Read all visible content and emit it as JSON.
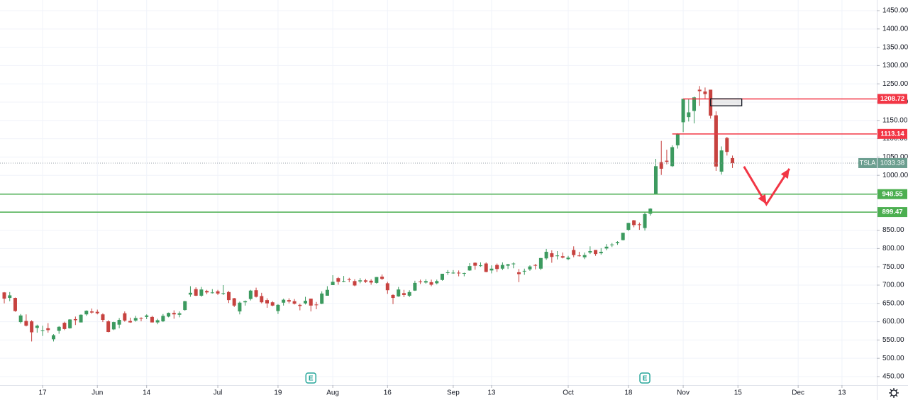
{
  "chart_data": {
    "type": "candlestick",
    "up_color": "#3c9a5f",
    "down_color": "#c7423f",
    "grid": true,
    "xlim": [
      -0.78,
      159.36
    ],
    "ylim": [
      426.7,
      1479.1
    ],
    "yticks": [
      {
        "value": 450,
        "label": "450.00"
      },
      {
        "value": 500,
        "label": "500.00"
      },
      {
        "value": 550,
        "label": "550.00"
      },
      {
        "value": 600,
        "label": "600.00"
      },
      {
        "value": 650,
        "label": "650.00"
      },
      {
        "value": 700,
        "label": "700.00"
      },
      {
        "value": 750,
        "label": "750.00"
      },
      {
        "value": 800,
        "label": "800.00"
      },
      {
        "value": 850,
        "label": "850.00"
      },
      {
        "value": 900,
        "label": "900.00"
      },
      {
        "value": 950,
        "label": "950.00"
      },
      {
        "value": 1000,
        "label": "1000.00"
      },
      {
        "value": 1050,
        "label": "1050.00"
      },
      {
        "value": 1100,
        "label": "1100.00"
      },
      {
        "value": 1150,
        "label": "1150.00"
      },
      {
        "value": 1200,
        "label": "1200.00"
      },
      {
        "value": 1250,
        "label": "1250.00"
      },
      {
        "value": 1300,
        "label": "1300.00"
      },
      {
        "value": 1350,
        "label": "1350.00"
      },
      {
        "value": 1400,
        "label": "1400.00"
      },
      {
        "value": 1450,
        "label": "1450.00"
      }
    ],
    "xticks": [
      {
        "value": 7,
        "label": "17"
      },
      {
        "value": 17,
        "label": "Jun"
      },
      {
        "value": 26,
        "label": "14"
      },
      {
        "value": 39,
        "label": "Jul"
      },
      {
        "value": 50,
        "label": "19"
      },
      {
        "value": 60,
        "label": "Aug"
      },
      {
        "value": 70,
        "label": "16"
      },
      {
        "value": 82,
        "label": "Sep"
      },
      {
        "value": 89,
        "label": "13"
      },
      {
        "value": 103,
        "label": "Oct"
      },
      {
        "value": 114,
        "label": "18"
      },
      {
        "value": 124,
        "label": "Nov"
      },
      {
        "value": 134,
        "label": "15"
      },
      {
        "value": 145,
        "label": "Dec"
      },
      {
        "value": 153,
        "label": "13"
      }
    ],
    "ohlc": [
      [
        680,
        681,
        650,
        663
      ],
      [
        665,
        681,
        656,
        672
      ],
      [
        665,
        666,
        627,
        629
      ],
      [
        599,
        621,
        595,
        617
      ],
      [
        602,
        620,
        587,
        589
      ],
      [
        601,
        604,
        546,
        571
      ],
      [
        583,
        592,
        570,
        589
      ],
      [
        575,
        589,
        561,
        576
      ],
      [
        582,
        596,
        570,
        577
      ],
      [
        552,
        566,
        546,
        563
      ],
      [
        575,
        588,
        567,
        586
      ],
      [
        597,
        600,
        577,
        580
      ],
      [
        582,
        607,
        581,
        606
      ],
      [
        607,
        614,
        591,
        604
      ],
      [
        598,
        620,
        598,
        619
      ],
      [
        620,
        631,
        616,
        630
      ],
      [
        628,
        636,
        622,
        625
      ],
      [
        627,
        633,
        620,
        623
      ],
      [
        620,
        623,
        599,
        605
      ],
      [
        601,
        604,
        571,
        572
      ],
      [
        579,
        600,
        577,
        599
      ],
      [
        592,
        610,
        582,
        605
      ],
      [
        623,
        628,
        600,
        603
      ],
      [
        602,
        611,
        597,
        598
      ],
      [
        603,
        616,
        600,
        610
      ],
      [
        610,
        612,
        601,
        609
      ],
      [
        613,
        620,
        607,
        617
      ],
      [
        613,
        616,
        598,
        598
      ],
      [
        598,
        608,
        593,
        604
      ],
      [
        601,
        621,
        599,
        616
      ],
      [
        614,
        625,
        612,
        624
      ],
      [
        624,
        631,
        608,
        620
      ],
      [
        619,
        628,
        612,
        623
      ],
      [
        632,
        657,
        630,
        656
      ],
      [
        674,
        697,
        668,
        679
      ],
      [
        689,
        694,
        670,
        671
      ],
      [
        671,
        695,
        668,
        688
      ],
      [
        684,
        687,
        675,
        680
      ],
      [
        679,
        689,
        677,
        680
      ],
      [
        683,
        687,
        673,
        677
      ],
      [
        678,
        700,
        673,
        678
      ],
      [
        681,
        684,
        651,
        659
      ],
      [
        664,
        665,
        640,
        644
      ],
      [
        628,
        655,
        620,
        652
      ],
      [
        653,
        658,
        644,
        656
      ],
      [
        662,
        687,
        658,
        685
      ],
      [
        686,
        693,
        666,
        668
      ],
      [
        670,
        679,
        650,
        653
      ],
      [
        659,
        664,
        638,
        650
      ],
      [
        653,
        656,
        642,
        644
      ],
      [
        629,
        648,
        621,
        646
      ],
      [
        652,
        663,
        644,
        660
      ],
      [
        659,
        664,
        650,
        655
      ],
      [
        656,
        662,
        647,
        649
      ],
      [
        646,
        649,
        631,
        643
      ],
      [
        650,
        668,
        647,
        657
      ],
      [
        663,
        663,
        628,
        644
      ],
      [
        647,
        654,
        634,
        646
      ],
      [
        649,
        683,
        648,
        677
      ],
      [
        671,
        697,
        671,
        687
      ],
      [
        700,
        727,
        700,
        709
      ],
      [
        719,
        722,
        701,
        709
      ],
      [
        711,
        725,
        708,
        711
      ],
      [
        716,
        720,
        708,
        714
      ],
      [
        711,
        716,
        697,
        699
      ],
      [
        710,
        719,
        705,
        713
      ],
      [
        713,
        717,
        706,
        709
      ],
      [
        712,
        716,
        701,
        707
      ],
      [
        706,
        722,
        704,
        722
      ],
      [
        723,
        729,
        714,
        717
      ],
      [
        705,
        709,
        676,
        686
      ],
      [
        673,
        675,
        648,
        665
      ],
      [
        669,
        695,
        668,
        688
      ],
      [
        678,
        687,
        667,
        673
      ],
      [
        671,
        686,
        667,
        681
      ],
      [
        685,
        712,
        684,
        706
      ],
      [
        710,
        715,
        703,
        708
      ],
      [
        707,
        716,
        704,
        711
      ],
      [
        708,
        715,
        697,
        701
      ],
      [
        705,
        715,
        702,
        711
      ],
      [
        714,
        731,
        712,
        731
      ],
      [
        733,
        741,
        728,
        735
      ],
      [
        734,
        741,
        731,
        734
      ],
      [
        734,
        740,
        724,
        732
      ],
      [
        732,
        734,
        724,
        733
      ],
      [
        740,
        760,
        739,
        752
      ],
      [
        761,
        762,
        742,
        753
      ],
      [
        753,
        762,
        750,
        754
      ],
      [
        759,
        762,
        735,
        736
      ],
      [
        740,
        754,
        732,
        745
      ],
      [
        755,
        759,
        736,
        744
      ],
      [
        745,
        762,
        741,
        755
      ],
      [
        753,
        758,
        744,
        757
      ],
      [
        757,
        762,
        746,
        759
      ],
      [
        735,
        744,
        708,
        730
      ],
      [
        737,
        745,
        728,
        739
      ],
      [
        743,
        754,
        739,
        751
      ],
      [
        755,
        758,
        743,
        753
      ],
      [
        745,
        774,
        741,
        774
      ],
      [
        773,
        799,
        769,
        791
      ],
      [
        787,
        795,
        761,
        777
      ],
      [
        779,
        793,
        770,
        781
      ],
      [
        779,
        789,
        773,
        775
      ],
      [
        771,
        780,
        768,
        775
      ],
      [
        796,
        806,
        776,
        782
      ],
      [
        781,
        791,
        778,
        780
      ],
      [
        776,
        789,
        771,
        782
      ],
      [
        789,
        806,
        785,
        793
      ],
      [
        796,
        796,
        780,
        785
      ],
      [
        787,
        801,
        783,
        791
      ],
      [
        800,
        812,
        795,
        805
      ],
      [
        810,
        815,
        804,
        811
      ],
      [
        815,
        820,
        810,
        818
      ],
      [
        823,
        843,
        822,
        843
      ],
      [
        851,
        870,
        848,
        870
      ],
      [
        877,
        878,
        858,
        864
      ],
      [
        866,
        871,
        851,
        865
      ],
      [
        856,
        900,
        849,
        894
      ],
      [
        895,
        910,
        890,
        909
      ],
      [
        950,
        1045,
        950,
        1025
      ],
      [
        1036,
        1094,
        1001,
        1018
      ],
      [
        1040,
        1070,
        1030,
        1037
      ],
      [
        1025,
        1082,
        1023,
        1077
      ],
      [
        1082,
        1115,
        1073,
        1114
      ],
      [
        1145,
        1209,
        1118,
        1209
      ],
      [
        1159,
        1209,
        1147,
        1172
      ],
      [
        1176,
        1215,
        1142,
        1213
      ],
      [
        1234,
        1244,
        1190,
        1230
      ],
      [
        1229,
        1240,
        1209,
        1222
      ],
      [
        1234,
        1234,
        1155,
        1163
      ],
      [
        1164,
        1175,
        1012,
        1024
      ],
      [
        1010,
        1079,
        1002,
        1068
      ],
      [
        1102,
        1105,
        1054,
        1064
      ],
      [
        1047,
        1054,
        1020,
        1033
      ]
    ],
    "hlines": [
      {
        "value": 1208.72,
        "color": "#f23645",
        "x_start": 124
      },
      {
        "value": 1113.14,
        "color": "#f23645",
        "x_start": 122
      },
      {
        "value": 948.55,
        "color": "#4caf50",
        "x_start": -0.78
      },
      {
        "value": 899.47,
        "color": "#4caf50",
        "x_start": -0.78
      }
    ],
    "last_price": {
      "symbol": "TSLA",
      "value": 1033.38,
      "color": "#6b9e8f"
    },
    "box": {
      "x": [
        129,
        134.7
      ],
      "y": [
        1190,
        1209
      ]
    },
    "arrow": {
      "x": [
        135.1,
        139.2,
        143.4
      ],
      "y": [
        1024,
        921,
        1018
      ],
      "color": "#f23645"
    },
    "earnings": [
      {
        "x": 56,
        "label": "E"
      },
      {
        "x": 117,
        "label": "E"
      }
    ]
  }
}
